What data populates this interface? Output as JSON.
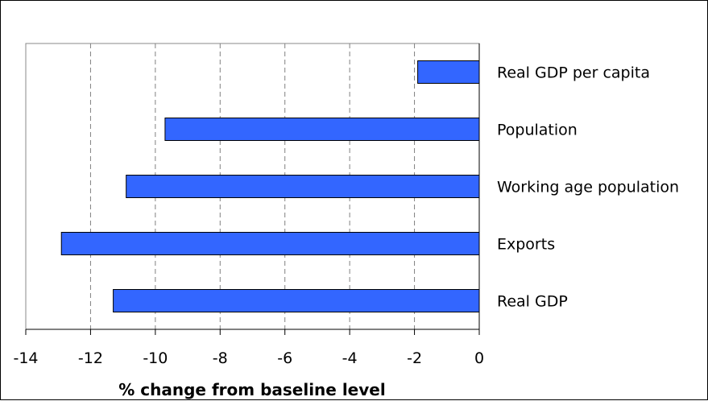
{
  "chart_data": {
    "type": "bar",
    "orientation": "horizontal",
    "categories": [
      "Real GDP per capita",
      "Population",
      "Working age population",
      "Exports",
      "Real GDP"
    ],
    "values": [
      -1.9,
      -9.7,
      -10.9,
      -12.9,
      -11.3
    ],
    "xlabel": "% change from baseline level",
    "ylabel": "",
    "xlim": [
      -14,
      0
    ],
    "xticks": [
      -14,
      -12,
      -10,
      -8,
      -6,
      -4,
      -2,
      0
    ],
    "tick_labels": [
      "-14",
      "-12",
      "-10",
      "-8",
      "-6",
      "-4",
      "-2",
      "0"
    ],
    "grid": "vertical dashed",
    "legend": "none",
    "bar_color": "#3366ff",
    "bar_edge_color": "#000000",
    "label_position": "right of zero line"
  }
}
